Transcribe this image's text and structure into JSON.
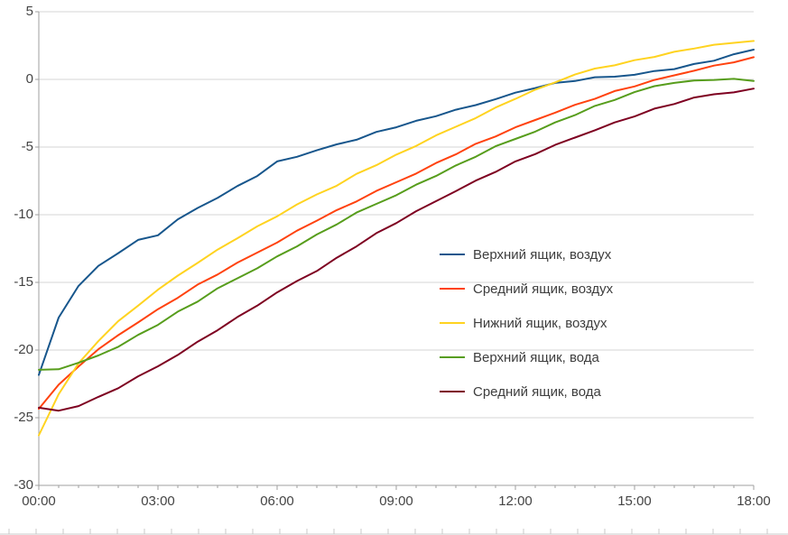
{
  "chart_data": {
    "type": "line",
    "title": "",
    "grid": "horizontal-only",
    "legend_position": "inside-center-right",
    "colors": {
      "background": "#ffffff",
      "gridline": "#d6d6d6",
      "axis": "#9f9f9f",
      "tick_text": "#444444",
      "bottom_edge": "#c9c9c9"
    },
    "x_axis": {
      "tick_labels": [
        "00:00",
        "03:00",
        "06:00",
        "09:00",
        "12:00",
        "15:00",
        "18:00"
      ],
      "tick_hours": [
        0,
        3,
        6,
        9,
        12,
        15,
        18
      ],
      "range_hours": [
        0,
        18
      ]
    },
    "y_axis": {
      "tick_labels": [
        "5",
        "0",
        "-5",
        "-10",
        "-15",
        "-20",
        "-25",
        "-30"
      ],
      "tick_values": [
        5,
        0,
        -5,
        -10,
        -15,
        -20,
        -25,
        -30
      ],
      "range": [
        -30,
        5
      ]
    },
    "x_hours": [
      0,
      0.5,
      1,
      1.5,
      2,
      2.5,
      3,
      3.5,
      4,
      4.5,
      5,
      5.5,
      6,
      6.5,
      7,
      7.5,
      8,
      8.5,
      9,
      9.5,
      10,
      10.5,
      11,
      11.5,
      12,
      12.5,
      13,
      13.5,
      14,
      14.5,
      15,
      15.5,
      16,
      16.5,
      17,
      17.5,
      18
    ],
    "series": [
      {
        "name": "Верхний ящик, воздух",
        "color": "#17568c",
        "values": [
          -21.9,
          -17.6,
          -15.2,
          -13.8,
          -12.8,
          -11.9,
          -11.5,
          -10.4,
          -9.5,
          -8.7,
          -7.9,
          -7.1,
          -6.1,
          -5.7,
          -5.3,
          -4.8,
          -4.4,
          -3.9,
          -3.5,
          -3.1,
          -2.7,
          -2.3,
          -1.9,
          -1.4,
          -1.0,
          -0.6,
          -0.3,
          -0.1,
          0.1,
          0.2,
          0.4,
          0.6,
          0.8,
          1.1,
          1.4,
          1.8,
          2.2
        ]
      },
      {
        "name": "Средний ящик, воздух",
        "color": "#ff420e",
        "values": [
          -24.3,
          -22.6,
          -21.2,
          -20.0,
          -18.9,
          -17.9,
          -17.0,
          -16.1,
          -15.2,
          -14.4,
          -13.6,
          -12.8,
          -12.0,
          -11.2,
          -10.4,
          -9.7,
          -9.0,
          -8.3,
          -7.6,
          -6.9,
          -6.2,
          -5.5,
          -4.8,
          -4.2,
          -3.6,
          -3.0,
          -2.4,
          -1.9,
          -1.4,
          -0.9,
          -0.5,
          -0.1,
          0.3,
          0.7,
          1.0,
          1.3,
          1.6
        ]
      },
      {
        "name": "Нижний ящик, воздух",
        "color": "#ffd320",
        "values": [
          -26.3,
          -23.2,
          -21.0,
          -19.3,
          -17.9,
          -16.7,
          -15.6,
          -14.5,
          -13.5,
          -12.6,
          -11.7,
          -10.9,
          -10.1,
          -9.3,
          -8.5,
          -7.8,
          -7.0,
          -6.3,
          -5.6,
          -4.9,
          -4.2,
          -3.5,
          -2.8,
          -2.1,
          -1.4,
          -0.8,
          -0.2,
          0.3,
          0.8,
          1.1,
          1.4,
          1.7,
          2.0,
          2.3,
          2.5,
          2.7,
          2.9
        ]
      },
      {
        "name": "Верхний ящик, вода",
        "color": "#579d1c",
        "values": [
          -21.5,
          -21.4,
          -21.0,
          -20.4,
          -19.7,
          -18.9,
          -18.1,
          -17.2,
          -16.4,
          -15.5,
          -14.7,
          -13.9,
          -13.1,
          -12.3,
          -11.5,
          -10.7,
          -9.9,
          -9.2,
          -8.5,
          -7.8,
          -7.1,
          -6.4,
          -5.7,
          -5.0,
          -4.4,
          -3.8,
          -3.2,
          -2.6,
          -2.0,
          -1.5,
          -1.0,
          -0.5,
          -0.2,
          -0.1,
          0.0,
          0.0,
          -0.1
        ]
      },
      {
        "name": "Средний ящик, вода",
        "color": "#7e0021",
        "values": [
          -24.2,
          -24.5,
          -24.1,
          -23.5,
          -22.8,
          -22.0,
          -21.2,
          -20.3,
          -19.4,
          -18.5,
          -17.6,
          -16.7,
          -15.8,
          -14.9,
          -14.1,
          -13.2,
          -12.3,
          -11.4,
          -10.6,
          -9.8,
          -9.0,
          -8.2,
          -7.5,
          -6.8,
          -6.1,
          -5.5,
          -4.9,
          -4.3,
          -3.7,
          -3.2,
          -2.7,
          -2.2,
          -1.8,
          -1.4,
          -1.1,
          -0.9,
          -0.7
        ]
      }
    ]
  }
}
